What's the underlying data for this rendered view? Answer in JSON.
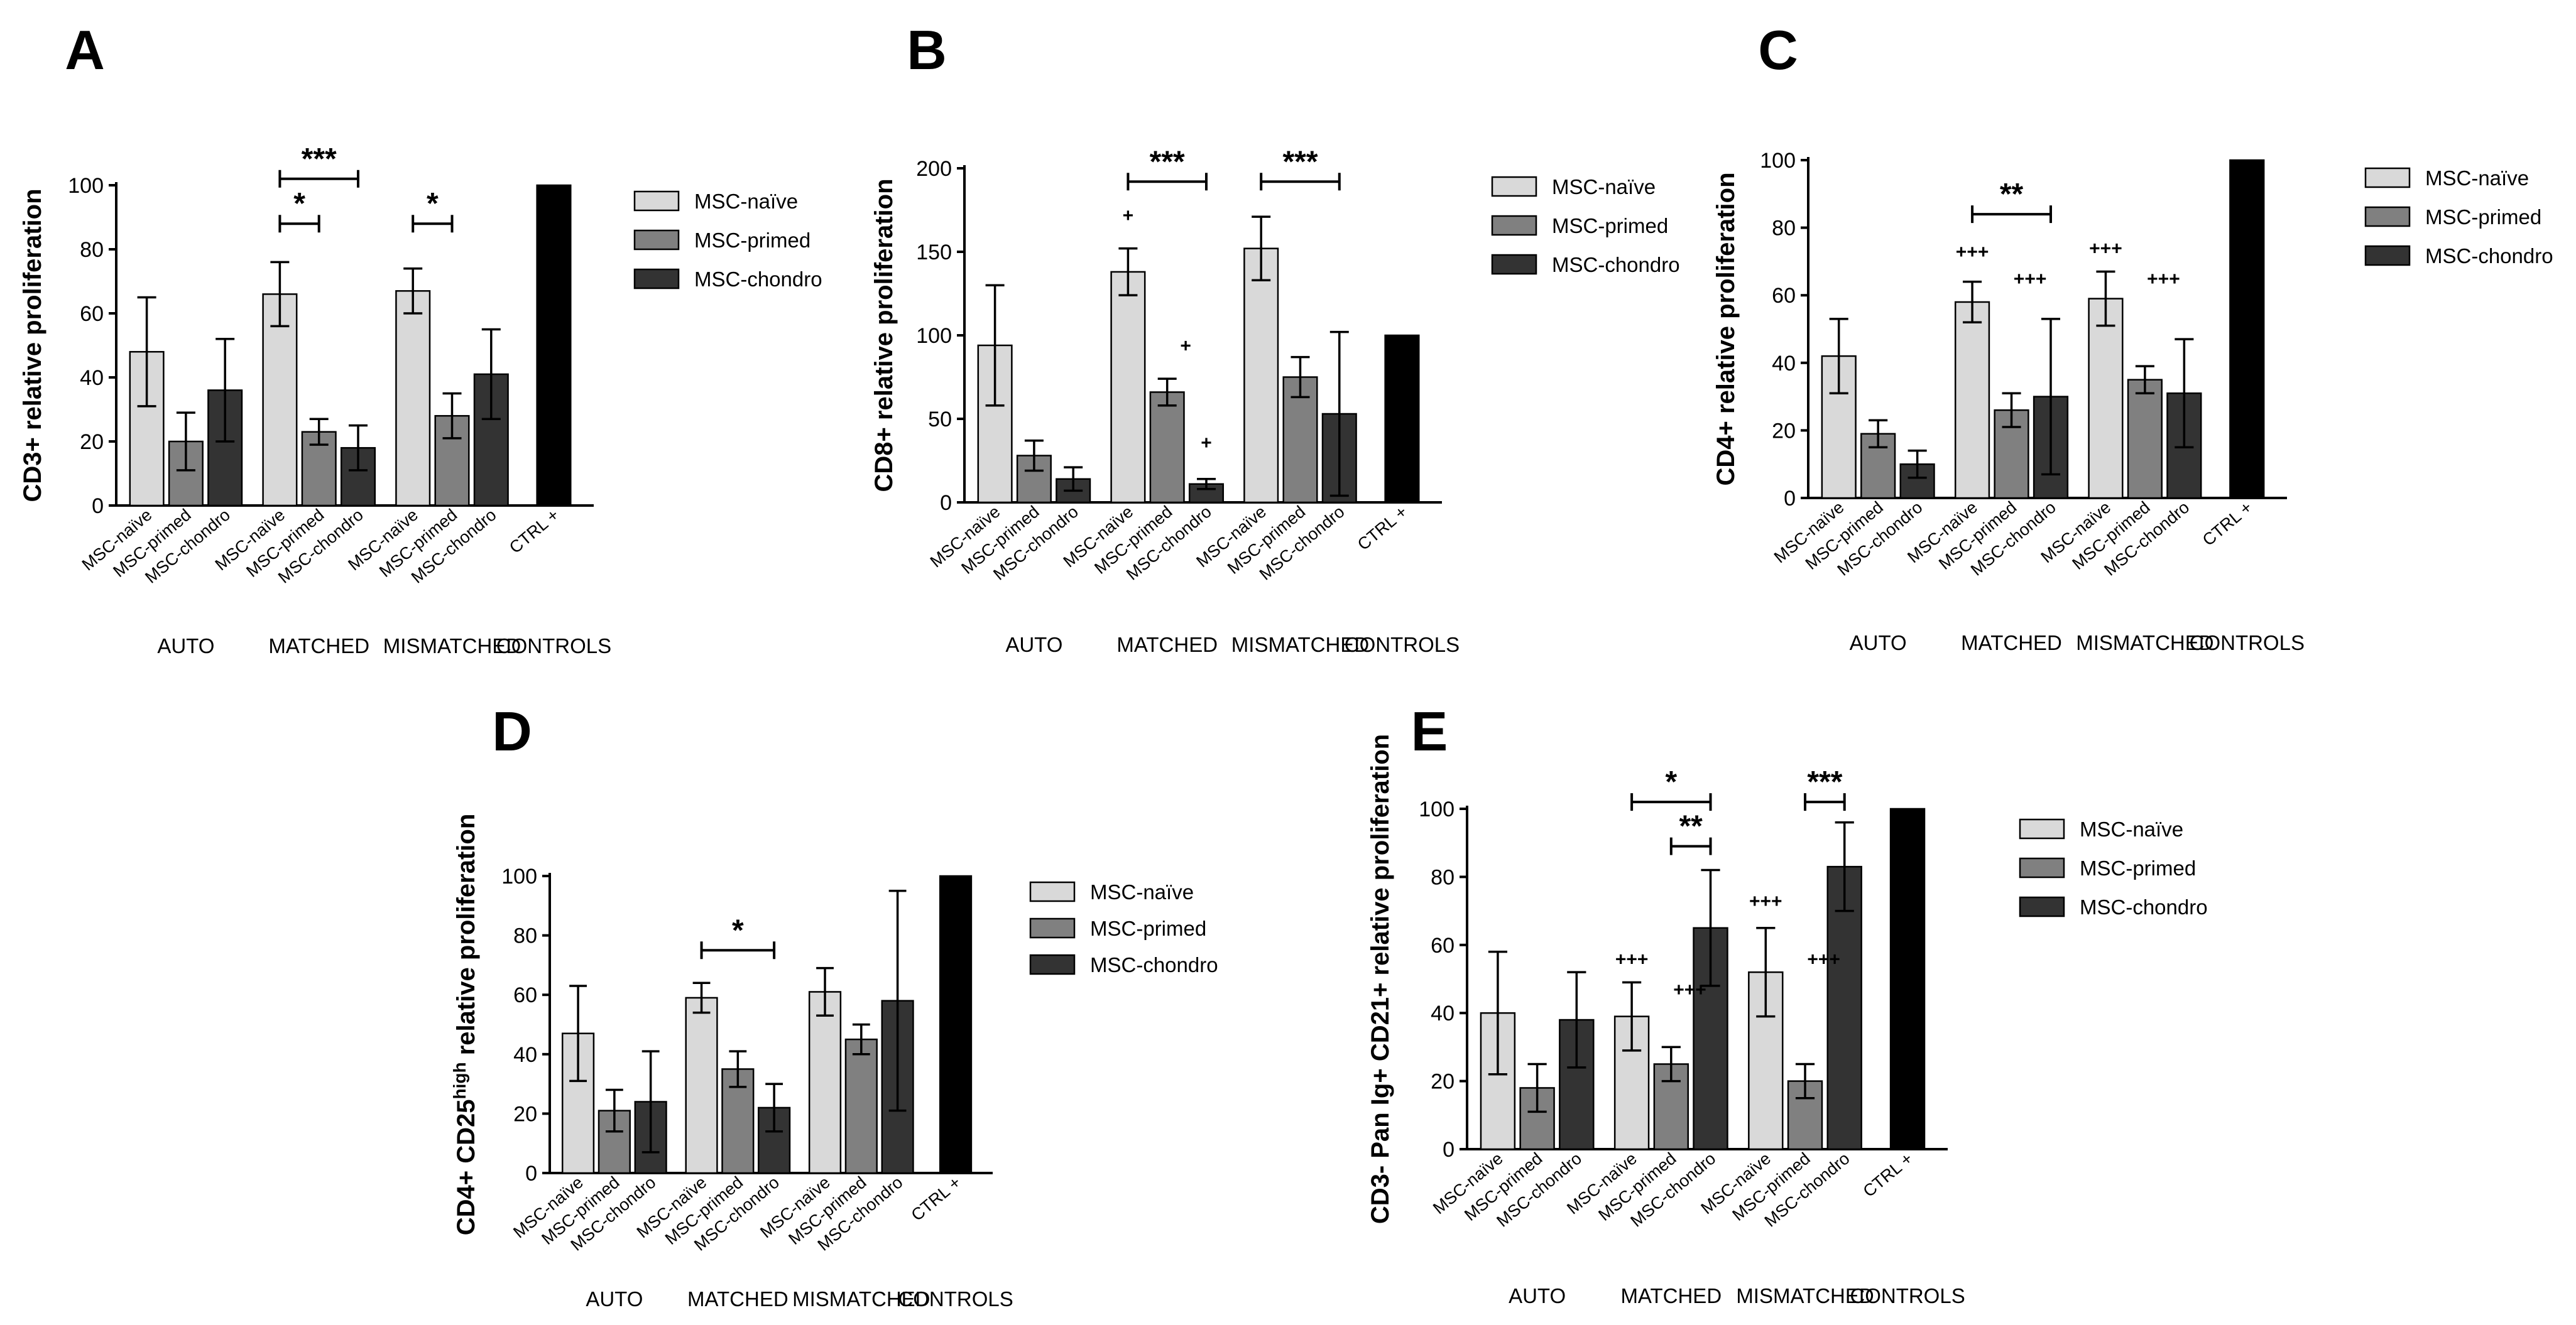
{
  "colors": {
    "naive": "#d9d9d9",
    "primed": "#808080",
    "chondro": "#333333",
    "control": "#000000"
  },
  "chart_data": [
    {
      "panel": "A",
      "type": "bar",
      "ylabel": "CD3+ relative proliferation",
      "ylim": [
        0,
        100
      ],
      "yticks": [
        "0",
        "20",
        "40",
        "60",
        "80",
        "100"
      ],
      "legend": [
        "MSC-naïve",
        "MSC-primed",
        "MSC-chondro"
      ],
      "bar_labels": [
        "MSC-naïve",
        "MSC-primed",
        "MSC-chondro"
      ],
      "control_label": "CTRL +",
      "groups": [
        "AUTO",
        "MATCHED",
        "MISMATCHED",
        "CONTROLS"
      ],
      "series": [
        {
          "name": "MSC-naïve",
          "values": [
            48,
            66,
            67
          ],
          "errors": [
            17,
            10,
            7
          ]
        },
        {
          "name": "MSC-primed",
          "values": [
            20,
            23,
            28
          ],
          "errors": [
            9,
            4,
            7
          ]
        },
        {
          "name": "MSC-chondro",
          "values": [
            36,
            18,
            41
          ],
          "errors": [
            16,
            7,
            14
          ]
        }
      ],
      "control_value": 100,
      "significance": [
        {
          "label": "*",
          "group": 1,
          "from": 0,
          "to": 1,
          "y": 88
        },
        {
          "label": "***",
          "group": 1,
          "from": 0,
          "to": 2,
          "y": 102
        },
        {
          "label": "*",
          "group": 2,
          "from": 0,
          "to": 1,
          "y": 88
        }
      ],
      "plus_marks": []
    },
    {
      "panel": "B",
      "type": "bar",
      "ylabel": "CD8+ relative proliferation",
      "ylim": [
        0,
        200
      ],
      "yticks": [
        "0",
        "50",
        "100",
        "150",
        "200"
      ],
      "legend": [
        "MSC-naïve",
        "MSC-primed",
        "MSC-chondro"
      ],
      "bar_labels": [
        "MSC-naïve",
        "MSC-primed",
        "MSC-chondro"
      ],
      "control_label": "CTRL +",
      "groups": [
        "AUTO",
        "MATCHED",
        "MISMATCHED",
        "CONTROLS"
      ],
      "series": [
        {
          "name": "MSC-naïve",
          "values": [
            94,
            138,
            152
          ],
          "errors": [
            36,
            14,
            19
          ]
        },
        {
          "name": "MSC-primed",
          "values": [
            28,
            66,
            75
          ],
          "errors": [
            9,
            8,
            12
          ]
        },
        {
          "name": "MSC-chondro",
          "values": [
            14,
            11,
            53
          ],
          "errors": [
            7,
            3,
            49
          ]
        }
      ],
      "control_value": 100,
      "significance": [
        {
          "label": "***",
          "group": 1,
          "from": 0,
          "to": 2,
          "y": 192
        },
        {
          "label": "***",
          "group": 2,
          "from": 0,
          "to": 2,
          "y": 192
        }
      ],
      "plus_marks": [
        {
          "label": "+",
          "group": 1,
          "bar": 0,
          "value": 168
        },
        {
          "label": "+",
          "group": 1,
          "bar": 1,
          "value": 90
        },
        {
          "label": "+",
          "group": 1,
          "bar": 2,
          "value": 32
        }
      ]
    },
    {
      "panel": "C",
      "type": "bar",
      "ylabel": "CD4+ relative proliferation",
      "ylim": [
        0,
        100
      ],
      "yticks": [
        "0",
        "20",
        "40",
        "60",
        "80",
        "100"
      ],
      "legend": [
        "MSC-naïve",
        "MSC-primed",
        "MSC-chondro"
      ],
      "bar_labels": [
        "MSC-naïve",
        "MSC-primed",
        "MSC-chondro"
      ],
      "control_label": "CTRL +",
      "groups": [
        "AUTO",
        "MATCHED",
        "MISMATCHED",
        "CONTROLS"
      ],
      "series": [
        {
          "name": "MSC-naïve",
          "values": [
            42,
            58,
            59
          ],
          "errors": [
            11,
            6,
            8
          ]
        },
        {
          "name": "MSC-primed",
          "values": [
            19,
            26,
            35
          ],
          "errors": [
            4,
            5,
            4
          ]
        },
        {
          "name": "MSC-chondro",
          "values": [
            10,
            30,
            31
          ],
          "errors": [
            4,
            23,
            16
          ]
        }
      ],
      "control_value": 100,
      "significance": [
        {
          "label": "**",
          "group": 1,
          "from": 0,
          "to": 2,
          "y": 84
        }
      ],
      "plus_marks": [
        {
          "label": "+++",
          "group": 1,
          "bar": 0,
          "value": 71
        },
        {
          "label": "+++",
          "group": 1,
          "bar": 1,
          "value": 63
        },
        {
          "label": "+++",
          "group": 2,
          "bar": 0,
          "value": 72
        },
        {
          "label": "+++",
          "group": 2,
          "bar": 1,
          "value": 63
        }
      ]
    },
    {
      "panel": "D",
      "type": "bar",
      "ylabel": "CD4+ CD25",
      "ylabel_sup": "high",
      "ylabel_tail": " relative proliferation",
      "ylim": [
        0,
        100
      ],
      "yticks": [
        "0",
        "20",
        "40",
        "60",
        "80",
        "100"
      ],
      "legend": [
        "MSC-naïve",
        "MSC-primed",
        "MSC-chondro"
      ],
      "bar_labels": [
        "MSC-naïve",
        "MSC-primed",
        "MSC-chondro"
      ],
      "control_label": "CTRL +",
      "groups": [
        "AUTO",
        "MATCHED",
        "MISMATCHED",
        "CONTROLS"
      ],
      "series": [
        {
          "name": "MSC-naïve",
          "values": [
            47,
            59,
            61
          ],
          "errors": [
            16,
            5,
            8
          ]
        },
        {
          "name": "MSC-primed",
          "values": [
            21,
            35,
            45
          ],
          "errors": [
            7,
            6,
            5
          ]
        },
        {
          "name": "MSC-chondro",
          "values": [
            24,
            22,
            58
          ],
          "errors": [
            17,
            8,
            37
          ]
        }
      ],
      "control_value": 100,
      "significance": [
        {
          "label": "*",
          "group": 1,
          "from": 0,
          "to": 2,
          "y": 75
        }
      ],
      "plus_marks": []
    },
    {
      "panel": "E",
      "type": "bar",
      "ylabel": "CD3- Pan Ig+ CD21+ relative proliferation",
      "ylim": [
        0,
        100
      ],
      "yticks": [
        "0",
        "20",
        "40",
        "60",
        "80",
        "100"
      ],
      "legend": [
        "MSC-naïve",
        "MSC-primed",
        "MSC-chondro"
      ],
      "bar_labels": [
        "MSC-naïve",
        "MSC-primed",
        "MSC-chondro"
      ],
      "control_label": "CTRL +",
      "groups": [
        "AUTO",
        "MATCHED",
        "MISMATCHED",
        "CONTROLS"
      ],
      "series": [
        {
          "name": "MSC-naïve",
          "values": [
            40,
            39,
            52
          ],
          "errors": [
            18,
            10,
            13
          ]
        },
        {
          "name": "MSC-primed",
          "values": [
            18,
            25,
            20
          ],
          "errors": [
            7,
            5,
            5
          ]
        },
        {
          "name": "MSC-chondro",
          "values": [
            38,
            65,
            83
          ],
          "errors": [
            14,
            17,
            13
          ]
        }
      ],
      "control_value": 100,
      "significance": [
        {
          "label": "*",
          "group": 1,
          "from": 0,
          "to": 2,
          "y": 102
        },
        {
          "label": "**",
          "group": 1,
          "from": 1,
          "to": 2,
          "y": 89
        },
        {
          "label": "***",
          "group": 2,
          "from": 1,
          "to": 2,
          "y": 102
        }
      ],
      "plus_marks": [
        {
          "label": "+++",
          "group": 1,
          "bar": 0,
          "value": 54
        },
        {
          "label": "+++",
          "group": 1,
          "bar": 1,
          "value": 45
        },
        {
          "label": "+++",
          "group": 2,
          "bar": 0,
          "value": 71
        },
        {
          "label": "+++",
          "group": 2,
          "bar": 1,
          "value": 54
        }
      ]
    }
  ]
}
